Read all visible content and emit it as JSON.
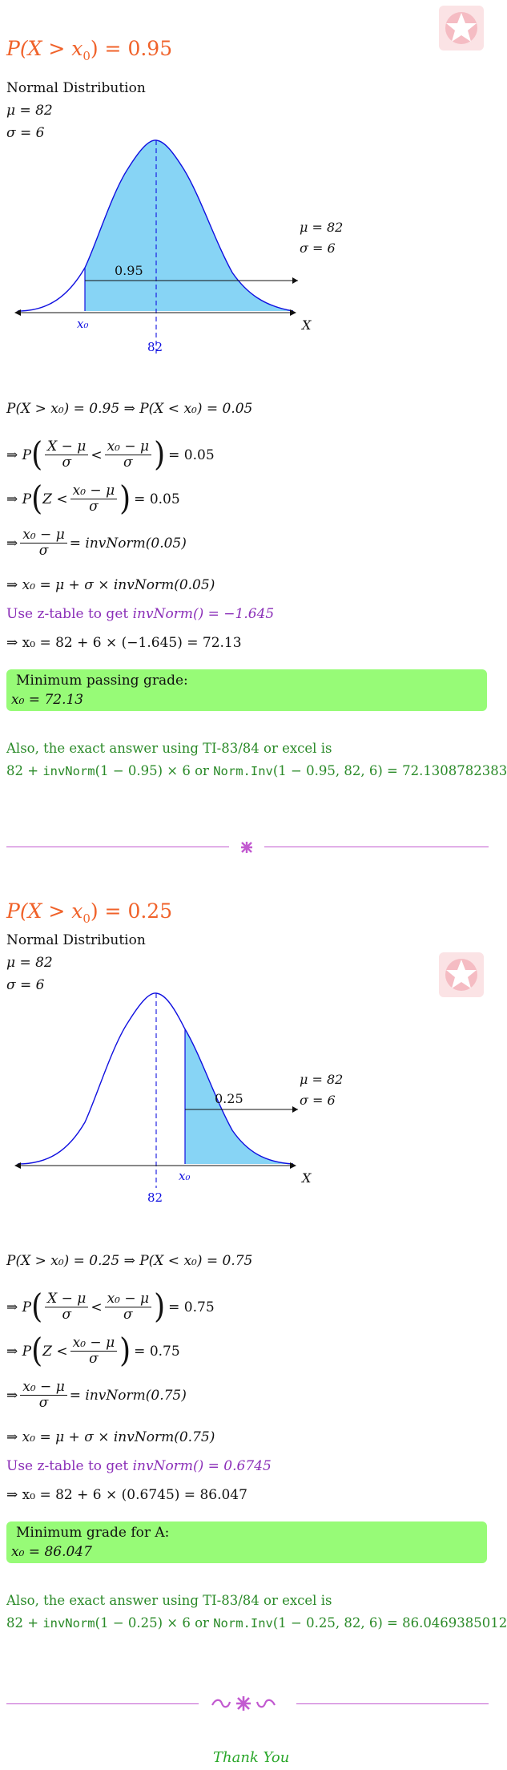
{
  "logo": {
    "icon": "star-badge-icon",
    "color": "#f7d0d4"
  },
  "colors": {
    "title": "#f0622a",
    "purple": "#8b2fb8",
    "green": "#2a8a28",
    "box": "#97fb77",
    "curve": "#1010e0",
    "fill": "#87d4f5"
  },
  "section1": {
    "title_lhs": "P(X > x",
    "title_sub": "0",
    "title_rhs": ") = 0.95",
    "dist_name": "Normal Distribution",
    "mu_line": "μ = 82",
    "sigma_line": "σ = 6",
    "legend_mu": "μ = 82",
    "legend_sigma": "σ = 6",
    "area_label": "0.95",
    "x0_label": "x₀",
    "mean_label": "82",
    "axis_label": "X",
    "step0": "P(X > x₀) = 0.95 ⇒ P(X < x₀) = 0.05",
    "step1_rhs": "= 0.05",
    "step2_rhs": "= 0.05",
    "step3_rhs": "= invNorm(0.05)",
    "step4": "⇒ x₀ = μ + σ × invNorm(0.05)",
    "ztable_text": "Use z-table to get ",
    "ztable_val": "invNorm() = −1.645",
    "step5": "⇒ x₀ = 82 + 6 × (−1.645) = 72.13",
    "box_line1": "Minimum passing grade:",
    "box_line2": "x₀ = 72.13",
    "exact_intro": "Also, the exact answer using TI-83/84 or excel is",
    "exact_a": "82 + ",
    "exact_b": "invNorm",
    "exact_c": "(1 − 0.95) × 6 or ",
    "exact_d": "Norm.Inv",
    "exact_e": "(1 − 0.95, 82, 6) = 72.1308782383"
  },
  "section2": {
    "title_lhs": "P(X > x",
    "title_sub": "0",
    "title_rhs": ") = 0.25",
    "dist_name": "Normal Distribution",
    "mu_line": "μ = 82",
    "sigma_line": "σ = 6",
    "legend_mu": "μ = 82",
    "legend_sigma": "σ = 6",
    "area_label": "0.25",
    "x0_label": "x₀",
    "mean_label": "82",
    "axis_label": "X",
    "step0": "P(X > x₀) = 0.25 ⇒ P(X < x₀) = 0.75",
    "step1_rhs": "= 0.75",
    "step2_rhs": "= 0.75",
    "step3_rhs": "= invNorm(0.75)",
    "step4": "⇒ x₀ = μ + σ × invNorm(0.75)",
    "ztable_text": "Use z-table to get ",
    "ztable_val": "invNorm() = 0.6745",
    "step5": "⇒ x₀ = 82 + 6 × (0.6745) = 86.047",
    "box_line1": "Minimum grade for A:",
    "box_line2": "x₀ = 86.047",
    "exact_intro": "Also, the exact answer using TI-83/84 or excel is",
    "exact_a": "82 + ",
    "exact_b": "invNorm",
    "exact_c": "(1 − 0.25) × 6 or ",
    "exact_d": "Norm.Inv",
    "exact_e": "(1 − 0.25, 82, 6) = 86.0469385012"
  },
  "common": {
    "arrow": "⇒ P",
    "arrow2": "⇒",
    "frac_a_num": "X − μ",
    "frac_a_den": "σ",
    "lt": "<",
    "frac_b_num": "x₀ − μ",
    "frac_b_den": "σ",
    "z_lt": "Z <",
    "lparen": "(",
    "rparen": ")"
  },
  "footer": {
    "thanks": "Thank You"
  }
}
